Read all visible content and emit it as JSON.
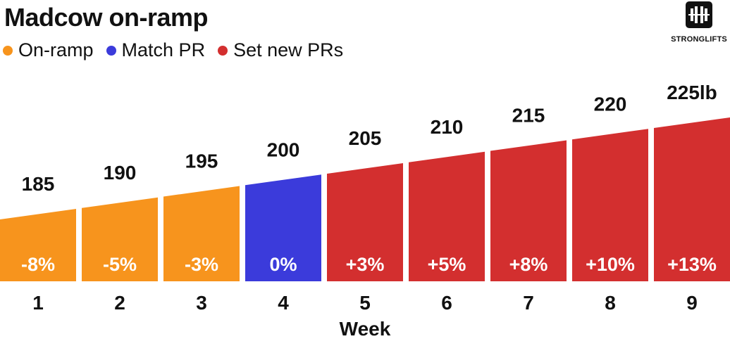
{
  "title": "Madcow on-ramp",
  "legend": [
    {
      "label": "On-ramp",
      "color": "#F7941D"
    },
    {
      "label": "Match PR",
      "color": "#3B3BDB"
    },
    {
      "label": "Set new PRs",
      "color": "#D32F2F"
    }
  ],
  "logo": {
    "text": "STRONGLIFTS",
    "icon": "barbell-icon"
  },
  "chart_data": {
    "type": "bar",
    "xlabel": "Week",
    "ylabel": "",
    "categories": [
      "1",
      "2",
      "3",
      "4",
      "5",
      "6",
      "7",
      "8",
      "9"
    ],
    "values": [
      185,
      190,
      195,
      200,
      205,
      210,
      215,
      220,
      225
    ],
    "value_labels": [
      "185",
      "190",
      "195",
      "200",
      "205",
      "210",
      "215",
      "220",
      "225lb"
    ],
    "percent_labels": [
      "-8%",
      "-5%",
      "-3%",
      "0%",
      "+3%",
      "+5%",
      "+8%",
      "+10%",
      "+13%"
    ],
    "groups": [
      "On-ramp",
      "On-ramp",
      "On-ramp",
      "Match PR",
      "Set new PRs",
      "Set new PRs",
      "Set new PRs",
      "Set new PRs",
      "Set new PRs"
    ],
    "colors": {
      "On-ramp": "#F7941D",
      "Match PR": "#3B3BDB",
      "Set new PRs": "#D32F2F"
    },
    "legend_position": "top-left",
    "grid": false
  }
}
